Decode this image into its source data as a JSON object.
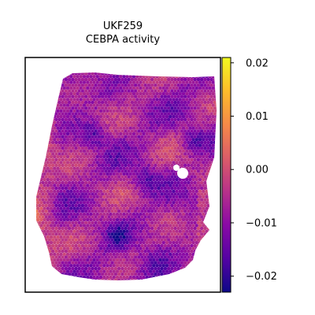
{
  "chart_data": {
    "type": "heatmap",
    "title": "UKF259",
    "subtitle": "CEBPA activity",
    "xlabel": "",
    "ylabel": "",
    "grid": false,
    "legend": "none",
    "colorbar": {
      "colormap": "plasma",
      "vmin": -0.023,
      "vmax": 0.021,
      "ticks": [
        {
          "value": 0.02,
          "label": "0.02"
        },
        {
          "value": 0.01,
          "label": "0.01"
        },
        {
          "value": 0.0,
          "label": "0.00"
        },
        {
          "value": -0.01,
          "label": "−0.01"
        },
        {
          "value": -0.02,
          "label": "−0.02"
        }
      ]
    },
    "tissue_palette": [
      "#0d0887",
      "#5302a3",
      "#8b0aa5",
      "#b83289",
      "#db5c68",
      "#f48849",
      "#febd2a",
      "#f0f921"
    ]
  }
}
